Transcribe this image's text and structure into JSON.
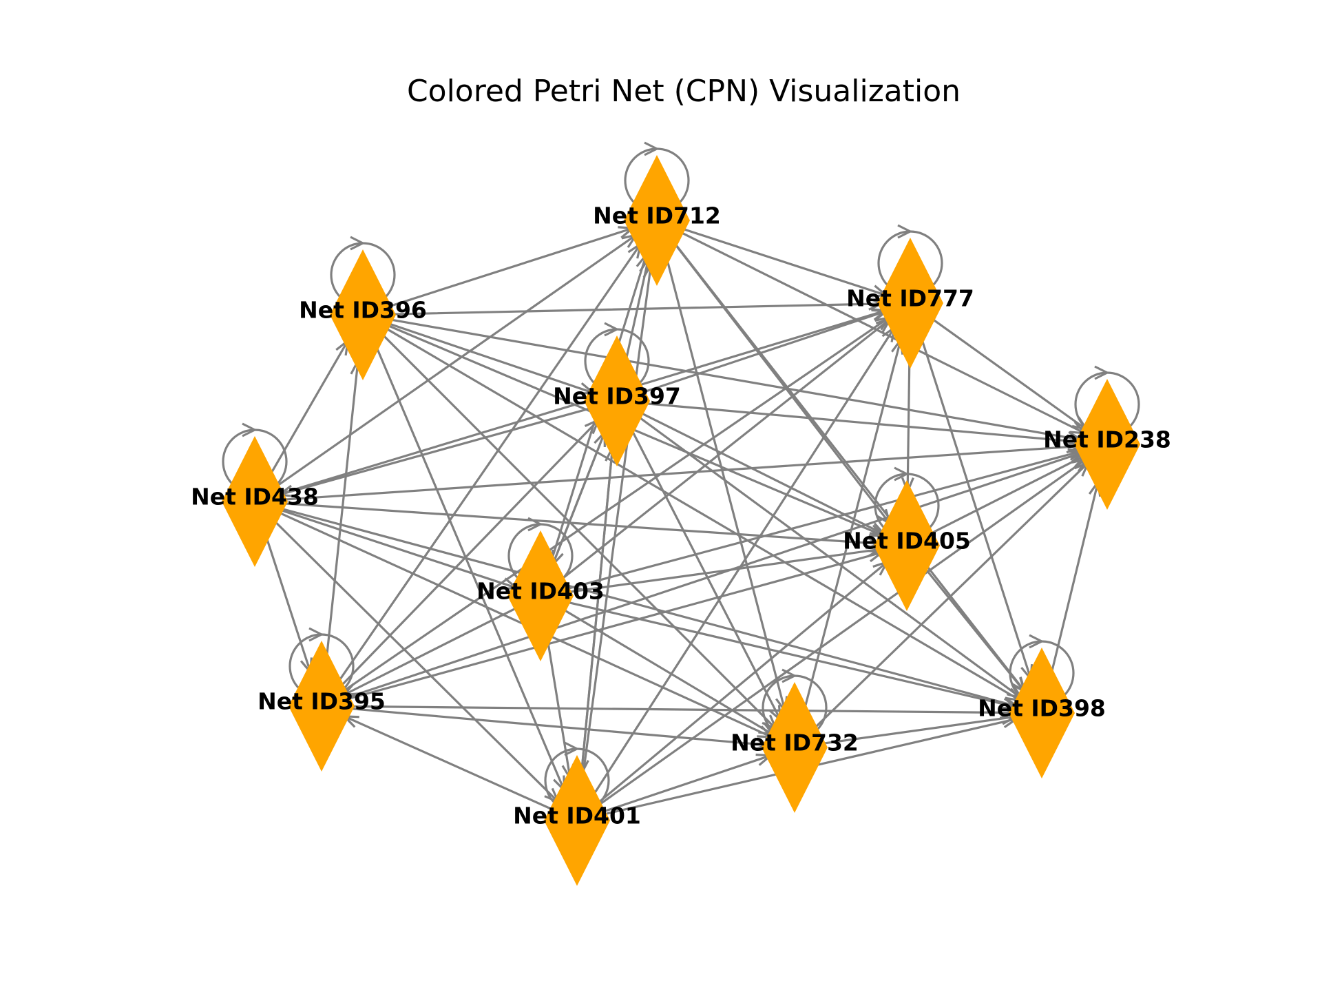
{
  "title": "Colored Petri Net (CPN) Visualization",
  "colors": {
    "node": "#FFA500",
    "edge": "#808080",
    "label": "#000000",
    "background": "#FFFFFF"
  },
  "node_shape": "diamond",
  "nodes": [
    {
      "id": "712",
      "label": "Net ID712"
    },
    {
      "id": "777",
      "label": "Net ID777"
    },
    {
      "id": "396",
      "label": "Net ID396"
    },
    {
      "id": "397",
      "label": "Net ID397"
    },
    {
      "id": "238",
      "label": "Net ID238"
    },
    {
      "id": "438",
      "label": "Net ID438"
    },
    {
      "id": "405",
      "label": "Net ID405"
    },
    {
      "id": "403",
      "label": "Net ID403"
    },
    {
      "id": "395",
      "label": "Net ID395"
    },
    {
      "id": "398",
      "label": "Net ID398"
    },
    {
      "id": "732",
      "label": "Net ID732"
    },
    {
      "id": "401",
      "label": "Net ID401"
    }
  ],
  "self_loops": [
    "712",
    "777",
    "396",
    "397",
    "238",
    "438",
    "405",
    "403",
    "395",
    "398",
    "732",
    "401"
  ],
  "edges": [
    [
      "396",
      "712"
    ],
    [
      "396",
      "777"
    ],
    [
      "396",
      "397"
    ],
    [
      "396",
      "238"
    ],
    [
      "396",
      "405"
    ],
    [
      "396",
      "398"
    ],
    [
      "396",
      "732"
    ],
    [
      "396",
      "401"
    ],
    [
      "438",
      "396"
    ],
    [
      "438",
      "712"
    ],
    [
      "438",
      "777"
    ],
    [
      "438",
      "238"
    ],
    [
      "438",
      "405"
    ],
    [
      "438",
      "403"
    ],
    [
      "438",
      "398"
    ],
    [
      "438",
      "395"
    ],
    [
      "438",
      "732"
    ],
    [
      "438",
      "401"
    ],
    [
      "397",
      "712"
    ],
    [
      "397",
      "777"
    ],
    [
      "397",
      "238"
    ],
    [
      "397",
      "405"
    ],
    [
      "397",
      "398"
    ],
    [
      "397",
      "438"
    ],
    [
      "397",
      "403"
    ],
    [
      "397",
      "401"
    ],
    [
      "397",
      "732"
    ],
    [
      "712",
      "777"
    ],
    [
      "712",
      "238"
    ],
    [
      "712",
      "405"
    ],
    [
      "712",
      "398"
    ],
    [
      "712",
      "732"
    ],
    [
      "403",
      "712"
    ],
    [
      "403",
      "777"
    ],
    [
      "403",
      "238"
    ],
    [
      "403",
      "405"
    ],
    [
      "403",
      "397"
    ],
    [
      "403",
      "398"
    ],
    [
      "403",
      "395"
    ],
    [
      "403",
      "401"
    ],
    [
      "403",
      "732"
    ],
    [
      "395",
      "396"
    ],
    [
      "395",
      "712"
    ],
    [
      "395",
      "777"
    ],
    [
      "395",
      "397"
    ],
    [
      "395",
      "238"
    ],
    [
      "395",
      "405"
    ],
    [
      "395",
      "398"
    ],
    [
      "395",
      "732"
    ],
    [
      "401",
      "712"
    ],
    [
      "401",
      "777"
    ],
    [
      "401",
      "397"
    ],
    [
      "401",
      "238"
    ],
    [
      "401",
      "405"
    ],
    [
      "401",
      "395"
    ],
    [
      "401",
      "732"
    ],
    [
      "401",
      "398"
    ],
    [
      "777",
      "238"
    ],
    [
      "777",
      "405"
    ],
    [
      "777",
      "398"
    ],
    [
      "732",
      "777"
    ],
    [
      "732",
      "238"
    ],
    [
      "732",
      "398"
    ],
    [
      "405",
      "238"
    ],
    [
      "405",
      "398"
    ],
    [
      "398",
      "238"
    ]
  ]
}
